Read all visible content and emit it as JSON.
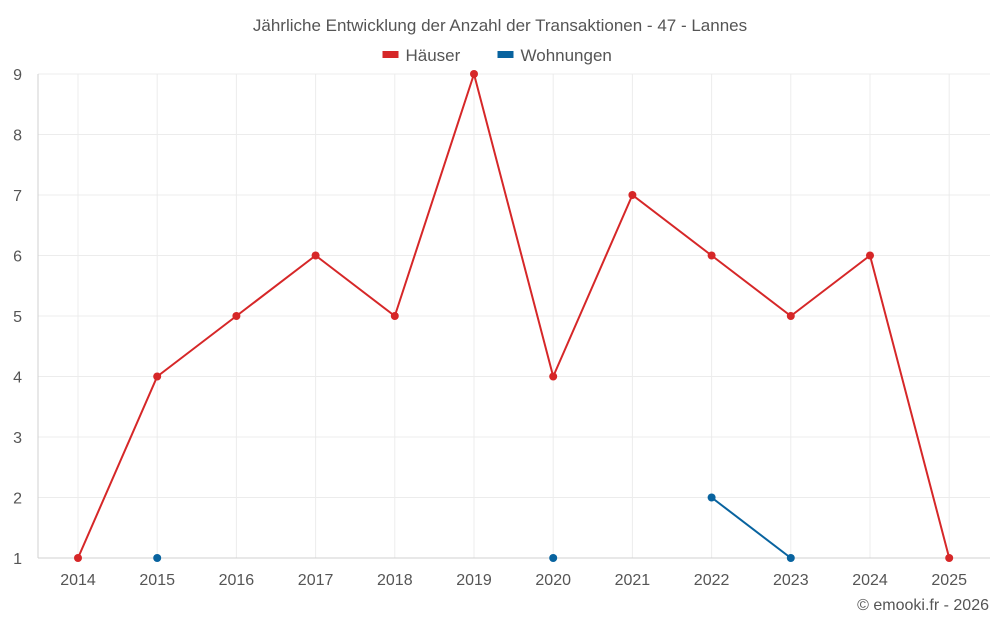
{
  "chart_data": {
    "type": "line",
    "title": "Jährliche Entwicklung der Anzahl der Transaktionen - 47 - Lannes",
    "categories": [
      "2014",
      "2015",
      "2016",
      "2017",
      "2018",
      "2019",
      "2020",
      "2021",
      "2022",
      "2023",
      "2024",
      "2025"
    ],
    "series": [
      {
        "name": "Häuser",
        "color": "#d62728",
        "values": [
          1,
          4,
          5,
          6,
          5,
          9,
          4,
          7,
          6,
          5,
          6,
          1
        ]
      },
      {
        "name": "Wohnungen",
        "color": "#08639f",
        "values": [
          null,
          1,
          null,
          null,
          null,
          null,
          1,
          null,
          2,
          1,
          null,
          null
        ]
      }
    ],
    "ylim": [
      1,
      9
    ],
    "yticks": [
      1,
      2,
      3,
      4,
      5,
      6,
      7,
      8,
      9
    ],
    "grid": true,
    "legend_position": "top-center"
  },
  "credit": "© emooki.fr - 2026"
}
